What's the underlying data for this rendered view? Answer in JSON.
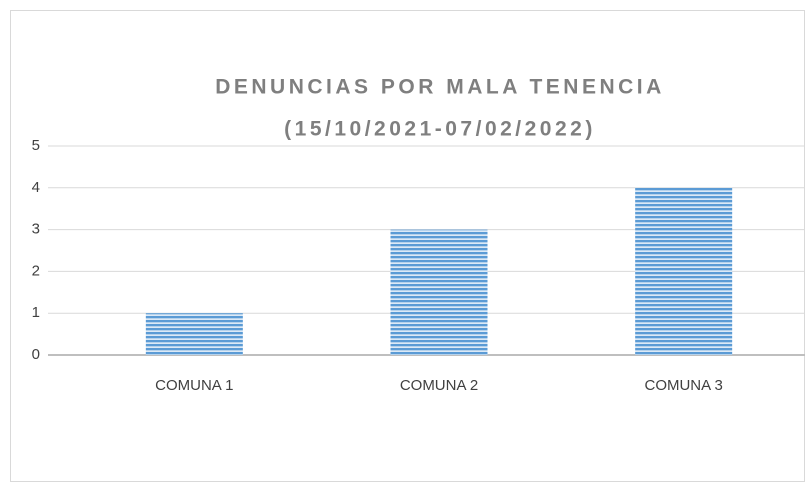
{
  "chart_data": {
    "type": "bar",
    "title": [
      "DENUNCIAS POR MALA TENENCIA",
      "(15/10/2021-07/02/2022)"
    ],
    "categories": [
      "COMUNA 1",
      "COMUNA 2",
      "COMUNA 3"
    ],
    "values": [
      1,
      3,
      4
    ],
    "color": "#5b9bd5",
    "ylim": [
      0,
      5
    ],
    "yticks": [
      0,
      1,
      2,
      3,
      4,
      5
    ],
    "grid": true
  }
}
